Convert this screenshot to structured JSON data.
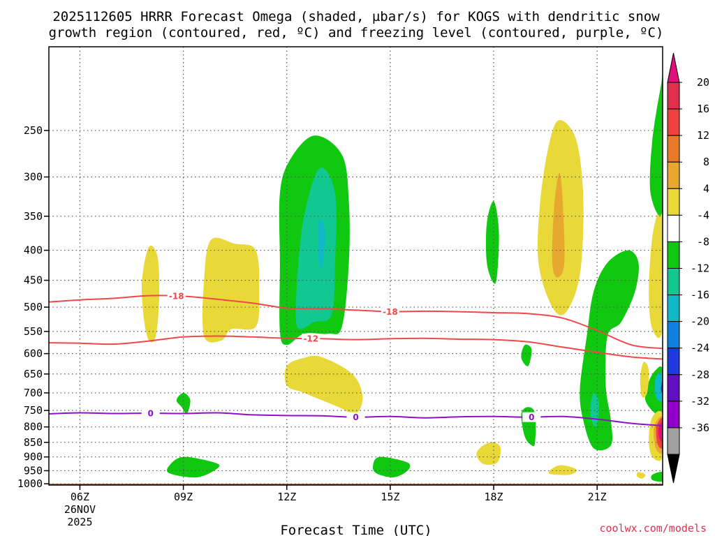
{
  "chart_data": {
    "type": "contour",
    "title_line1": "2025112605 HRRR Forecast Omega (shaded, µbar/s) for KOGS with dendritic snow",
    "title_line2": "growth region (contoured, red, ºC) and freezing level (contoured, purple, ºC)",
    "xlabel": "Forecast Time (UTC)",
    "x_ticks": [
      {
        "hour": 6,
        "label": "06Z",
        "sub1": "26NOV",
        "sub2": "2025"
      },
      {
        "hour": 9,
        "label": "09Z"
      },
      {
        "hour": 12,
        "label": "12Z"
      },
      {
        "hour": 15,
        "label": "15Z"
      },
      {
        "hour": 18,
        "label": "18Z"
      },
      {
        "hour": 21,
        "label": "21Z"
      }
    ],
    "xlim": [
      5.1,
      22.9
    ],
    "y_ticks": [
      250,
      300,
      350,
      400,
      450,
      500,
      550,
      600,
      650,
      700,
      750,
      800,
      850,
      900,
      950,
      1000
    ],
    "ylim": [
      180,
      1005
    ],
    "terrain_pressure": 1000,
    "colorbar": {
      "tick_labels": [
        "20",
        "16",
        "12",
        "8",
        "4",
        "-4",
        "-8",
        "-12",
        "-16",
        "-20",
        "-24",
        "-28",
        "-32",
        "-36"
      ],
      "colors": [
        "#f0f020",
        "#e03050",
        "#f04040",
        "#e87a28",
        "#e8a830",
        "#e8d838",
        "#ffffff",
        "#10c810",
        "#10c890",
        "#10b8c8",
        "#1080e0",
        "#2038e0",
        "#6010c0",
        "#9000c8",
        "#a0a0a0",
        "#000000"
      ],
      "top_arrow_color": "#e0107a",
      "bottom_arrow_color": "#000000"
    },
    "dgz_contours": [
      {
        "value": -18,
        "label": "-18",
        "color": "#f04848",
        "points": [
          [
            5.1,
            490
          ],
          [
            6.0,
            486
          ],
          [
            7.0,
            483
          ],
          [
            8.0,
            478
          ],
          [
            9.0,
            479
          ],
          [
            10.0,
            485
          ],
          [
            11.0,
            492
          ],
          [
            12.0,
            502
          ],
          [
            13.0,
            503
          ],
          [
            14.0,
            506
          ],
          [
            15.0,
            509
          ],
          [
            16.0,
            508
          ],
          [
            17.0,
            509
          ],
          [
            18.0,
            511
          ],
          [
            19.0,
            513
          ],
          [
            20.0,
            522
          ],
          [
            21.0,
            548
          ],
          [
            22.0,
            580
          ],
          [
            22.9,
            588
          ]
        ]
      },
      {
        "value": -12,
        "label": "-12",
        "color": "#f04848",
        "points": [
          [
            5.1,
            575
          ],
          [
            6.0,
            576
          ],
          [
            7.0,
            578
          ],
          [
            8.0,
            571
          ],
          [
            9.0,
            562
          ],
          [
            10.0,
            560
          ],
          [
            11.0,
            562
          ],
          [
            12.0,
            565
          ],
          [
            13.0,
            566
          ],
          [
            14.0,
            568
          ],
          [
            15.0,
            566
          ],
          [
            16.0,
            565
          ],
          [
            17.0,
            567
          ],
          [
            18.0,
            568
          ],
          [
            19.0,
            573
          ],
          [
            20.0,
            585
          ],
          [
            21.0,
            597
          ],
          [
            22.0,
            608
          ],
          [
            22.9,
            613
          ]
        ]
      }
    ],
    "freezing_contours": [
      {
        "value": 0,
        "label": "0",
        "color": "#9010c8",
        "points": [
          [
            5.1,
            760
          ],
          [
            6.0,
            757
          ],
          [
            7.0,
            759
          ],
          [
            8.0,
            758
          ],
          [
            9.0,
            759
          ],
          [
            10.0,
            757
          ],
          [
            11.0,
            763
          ],
          [
            12.0,
            765
          ],
          [
            13.0,
            766
          ],
          [
            14.0,
            770
          ],
          [
            15.0,
            768
          ],
          [
            16.0,
            772
          ],
          [
            17.0,
            769
          ],
          [
            18.0,
            768
          ],
          [
            19.0,
            770
          ],
          [
            20.0,
            768
          ],
          [
            21.0,
            776
          ],
          [
            22.0,
            789
          ],
          [
            22.9,
            796
          ]
        ]
      }
    ],
    "shaded_regions": [
      {
        "name": "yellow-0830",
        "color": "#e8d838",
        "points": [
          [
            8.0,
            395
          ],
          [
            8.25,
            410
          ],
          [
            8.3,
            480
          ],
          [
            8.2,
            560
          ],
          [
            8.0,
            570
          ],
          [
            7.85,
            520
          ],
          [
            7.8,
            450
          ]
        ]
      },
      {
        "name": "yellow-1030",
        "color": "#e8d838",
        "points": [
          [
            9.8,
            384
          ],
          [
            10.5,
            390
          ],
          [
            11.1,
            400
          ],
          [
            11.2,
            470
          ],
          [
            11.1,
            540
          ],
          [
            10.4,
            545
          ],
          [
            10.1,
            570
          ],
          [
            9.6,
            560
          ],
          [
            9.6,
            450
          ]
        ]
      },
      {
        "name": "green-1300",
        "color": "#10c810",
        "points": [
          [
            12.8,
            255
          ],
          [
            13.6,
            275
          ],
          [
            13.8,
            330
          ],
          [
            13.8,
            420
          ],
          [
            13.6,
            540
          ],
          [
            13.2,
            555
          ],
          [
            12.5,
            555
          ],
          [
            12.0,
            580
          ],
          [
            11.8,
            550
          ],
          [
            11.8,
            420
          ],
          [
            11.8,
            320
          ],
          [
            12.1,
            280
          ]
        ]
      },
      {
        "name": "teal-1300",
        "color": "#10c890",
        "points": [
          [
            12.95,
            290
          ],
          [
            13.4,
            320
          ],
          [
            13.4,
            420
          ],
          [
            13.3,
            515
          ],
          [
            12.8,
            530
          ],
          [
            12.3,
            540
          ],
          [
            12.3,
            450
          ],
          [
            12.5,
            350
          ]
        ]
      },
      {
        "name": "cyan-1300",
        "color": "#10b8c8",
        "points": [
          [
            12.95,
            355
          ],
          [
            13.1,
            370
          ],
          [
            13.05,
            420
          ],
          [
            12.95,
            425
          ],
          [
            12.9,
            380
          ]
        ]
      },
      {
        "name": "yellow-1330",
        "color": "#e8d838",
        "points": [
          [
            13.0,
            608
          ],
          [
            13.9,
            650
          ],
          [
            14.2,
            710
          ],
          [
            14.0,
            760
          ],
          [
            13.5,
            740
          ],
          [
            12.5,
            700
          ],
          [
            12.0,
            680
          ],
          [
            12.0,
            630
          ],
          [
            12.5,
            610
          ]
        ]
      },
      {
        "name": "green-1800",
        "color": "#10c810",
        "points": [
          [
            18.0,
            330
          ],
          [
            18.15,
            370
          ],
          [
            18.1,
            440
          ],
          [
            18.0,
            455
          ],
          [
            17.8,
            420
          ],
          [
            17.8,
            360
          ]
        ]
      },
      {
        "name": "yellow-2000",
        "color": "#e8d838",
        "points": [
          [
            19.9,
            240
          ],
          [
            20.4,
            260
          ],
          [
            20.6,
            330
          ],
          [
            20.5,
            440
          ],
          [
            20.1,
            510
          ],
          [
            19.7,
            500
          ],
          [
            19.3,
            420
          ],
          [
            19.35,
            330
          ],
          [
            19.6,
            265
          ]
        ]
      },
      {
        "name": "orange-2000",
        "color": "#e8a830",
        "points": [
          [
            19.9,
            295
          ],
          [
            20.0,
            330
          ],
          [
            20.05,
            420
          ],
          [
            19.85,
            445
          ],
          [
            19.7,
            420
          ],
          [
            19.75,
            340
          ]
        ]
      },
      {
        "name": "green-2130",
        "color": "#10c810",
        "points": [
          [
            21.9,
            400
          ],
          [
            22.2,
            420
          ],
          [
            22.1,
            470
          ],
          [
            21.7,
            530
          ],
          [
            21.3,
            560
          ],
          [
            21.25,
            680
          ],
          [
            21.4,
            780
          ],
          [
            21.4,
            860
          ],
          [
            20.9,
            870
          ],
          [
            20.6,
            780
          ],
          [
            20.5,
            690
          ],
          [
            20.7,
            560
          ],
          [
            20.9,
            470
          ],
          [
            21.3,
            420
          ]
        ]
      },
      {
        "name": "teal-2100",
        "color": "#10c890",
        "points": [
          [
            20.9,
            700
          ],
          [
            21.05,
            730
          ],
          [
            21.0,
            790
          ],
          [
            20.9,
            795
          ],
          [
            20.8,
            750
          ]
        ]
      },
      {
        "name": "yellow-2230",
        "color": "#e8d838",
        "points": [
          [
            22.8,
            340
          ],
          [
            22.9,
            340
          ],
          [
            22.9,
            540
          ],
          [
            22.6,
            545
          ],
          [
            22.5,
            470
          ],
          [
            22.6,
            380
          ]
        ]
      },
      {
        "name": "green-2300-top",
        "color": "#10c810",
        "points": [
          [
            22.85,
            210
          ],
          [
            22.9,
            210
          ],
          [
            22.9,
            340
          ],
          [
            22.55,
            320
          ],
          [
            22.6,
            260
          ]
        ]
      },
      {
        "name": "green-2300-mid",
        "color": "#10c810",
        "points": [
          [
            22.9,
            640
          ],
          [
            22.9,
            760
          ],
          [
            22.7,
            760
          ],
          [
            22.4,
            720
          ],
          [
            22.5,
            670
          ],
          [
            22.7,
            640
          ]
        ]
      },
      {
        "name": "cyan-2300",
        "color": "#10b8c8",
        "points": [
          [
            22.9,
            650
          ],
          [
            22.9,
            720
          ],
          [
            22.7,
            710
          ],
          [
            22.7,
            660
          ]
        ]
      },
      {
        "name": "blue-2300",
        "color": "#2038e0",
        "points": [
          [
            22.9,
            665
          ],
          [
            22.9,
            700
          ],
          [
            22.85,
            690
          ]
        ]
      },
      {
        "name": "yellow-2300-low",
        "color": "#e8d838",
        "points": [
          [
            22.9,
            760
          ],
          [
            22.9,
            900
          ],
          [
            22.6,
            900
          ],
          [
            22.5,
            840
          ],
          [
            22.6,
            770
          ]
        ]
      },
      {
        "name": "orange-2300-low",
        "color": "#e8a830",
        "points": [
          [
            22.9,
            770
          ],
          [
            22.9,
            880
          ],
          [
            22.7,
            870
          ],
          [
            22.65,
            800
          ]
        ]
      },
      {
        "name": "red-2300-low",
        "color": "#f04040",
        "points": [
          [
            22.9,
            775
          ],
          [
            22.9,
            865
          ],
          [
            22.75,
            855
          ],
          [
            22.72,
            800
          ]
        ]
      },
      {
        "name": "magenta-2300-low",
        "color": "#e0107a",
        "points": [
          [
            22.9,
            785
          ],
          [
            22.9,
            845
          ],
          [
            22.8,
            835
          ],
          [
            22.78,
            805
          ]
        ]
      },
      {
        "name": "yellow-2240",
        "color": "#e8d838",
        "points": [
          [
            22.35,
            620
          ],
          [
            22.5,
            640
          ],
          [
            22.45,
            700
          ],
          [
            22.3,
            710
          ],
          [
            22.25,
            660
          ]
        ]
      },
      {
        "name": "green-0910",
        "color": "#10c810",
        "points": [
          [
            9.0,
            700
          ],
          [
            9.2,
            720
          ],
          [
            9.1,
            760
          ],
          [
            8.95,
            740
          ],
          [
            8.8,
            720
          ]
        ]
      },
      {
        "name": "green-0930-low",
        "color": "#10c810",
        "points": [
          [
            9.0,
            900
          ],
          [
            9.9,
            920
          ],
          [
            10.0,
            940
          ],
          [
            9.4,
            975
          ],
          [
            8.6,
            960
          ],
          [
            8.6,
            930
          ]
        ]
      },
      {
        "name": "green-1500-low",
        "color": "#10c810",
        "points": [
          [
            14.7,
            900
          ],
          [
            15.5,
            920
          ],
          [
            15.5,
            950
          ],
          [
            15.1,
            975
          ],
          [
            14.6,
            960
          ],
          [
            14.5,
            930
          ]
        ]
      },
      {
        "name": "yellow-1800-low",
        "color": "#e8d838",
        "points": [
          [
            18.0,
            850
          ],
          [
            18.2,
            870
          ],
          [
            18.1,
            920
          ],
          [
            17.7,
            925
          ],
          [
            17.5,
            890
          ],
          [
            17.7,
            860
          ]
        ]
      },
      {
        "name": "green-1900",
        "color": "#10c810",
        "points": [
          [
            19.0,
            740
          ],
          [
            19.2,
            760
          ],
          [
            19.2,
            850
          ],
          [
            19.1,
            860
          ],
          [
            18.9,
            830
          ],
          [
            18.8,
            760
          ]
        ]
      },
      {
        "name": "green-1900-small",
        "color": "#10c810",
        "points": [
          [
            18.9,
            580
          ],
          [
            19.1,
            590
          ],
          [
            19.0,
            630
          ],
          [
            18.8,
            610
          ]
        ]
      },
      {
        "name": "yellow-2000-low",
        "color": "#e8d838",
        "points": [
          [
            19.9,
            930
          ],
          [
            20.4,
            945
          ],
          [
            20.2,
            965
          ],
          [
            19.6,
            960
          ]
        ]
      },
      {
        "name": "yellow-2250-low",
        "color": "#e8d838",
        "points": [
          [
            22.2,
            955
          ],
          [
            22.4,
            965
          ],
          [
            22.3,
            980
          ],
          [
            22.15,
            970
          ]
        ]
      },
      {
        "name": "green-2300-bottom",
        "color": "#10c810",
        "points": [
          [
            22.9,
            955
          ],
          [
            22.9,
            990
          ],
          [
            22.6,
            985
          ],
          [
            22.6,
            965
          ]
        ]
      }
    ]
  },
  "credit": "coolwx.com/models"
}
